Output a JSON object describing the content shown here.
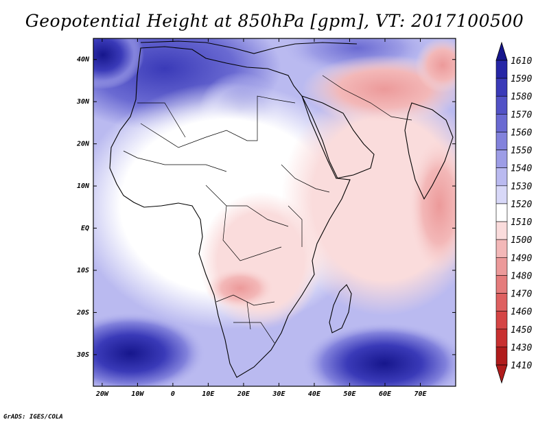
{
  "title": "Geopotential Height at 850hPa [gpm], VT: 2017100500",
  "credit": "GrADS: IGES/COLA",
  "lon_labels": [
    "20W",
    "10W",
    "0",
    "10E",
    "20E",
    "30E",
    "40E",
    "50E",
    "60E",
    "70E"
  ],
  "lat_labels": [
    "40N",
    "30N",
    "20N",
    "10N",
    "EQ",
    "10S",
    "20S",
    "30S"
  ],
  "lon_values": [
    -20,
    -10,
    0,
    10,
    20,
    30,
    40,
    50,
    60,
    70
  ],
  "lat_values": [
    40,
    30,
    20,
    10,
    0,
    -10,
    -20,
    -30
  ],
  "extent": {
    "lon_min": -22.5,
    "lon_max": 80,
    "lat_min": -37.5,
    "lat_max": 45
  },
  "colorbar": {
    "levels": [
      "1610",
      "1590",
      "1580",
      "1570",
      "1560",
      "1550",
      "1540",
      "1530",
      "1520",
      "1510",
      "1500",
      "1490",
      "1480",
      "1470",
      "1460",
      "1450",
      "1430",
      "1410"
    ],
    "colors": [
      "#16168c",
      "#2626a6",
      "#3a3ab8",
      "#5252c6",
      "#6a6ad2",
      "#8282dc",
      "#9d9de6",
      "#babaf0",
      "#d8d8f8",
      "#ffffff",
      "#fadcdc",
      "#f3b8b8",
      "#ec9a9a",
      "#e57c7c",
      "#de6060",
      "#d54545",
      "#c83030",
      "#b01c1c"
    ]
  }
}
